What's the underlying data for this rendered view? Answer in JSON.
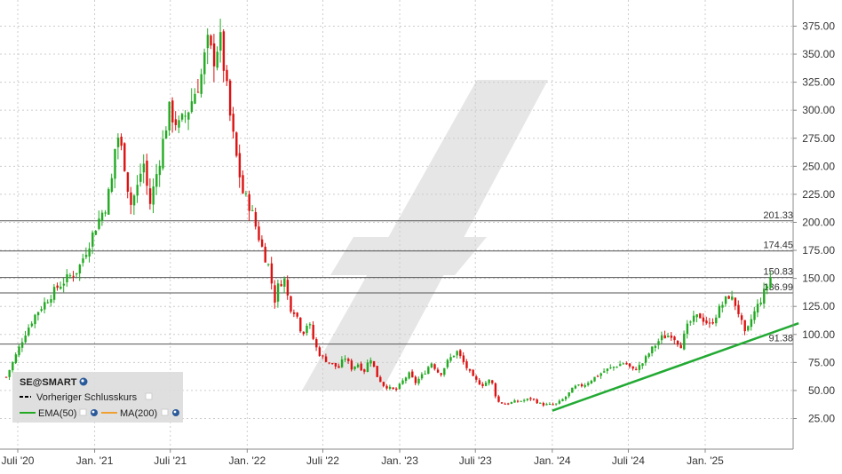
{
  "chart_data": {
    "type": "candlestick",
    "symbol": "SE@SMART",
    "colors": {
      "up": "#22aa22",
      "down": "#dd1111",
      "hline": "#555555",
      "trendline": "#22aa33",
      "ema": "#22aa22",
      "ma": "#f0a030"
    },
    "y_axis": {
      "position": "right",
      "ylim": [
        5,
        385
      ],
      "ticks": [
        "25.00",
        "50.00",
        "75.00",
        "100.00",
        "125.00",
        "150.00",
        "175.00",
        "200.00",
        "225.00",
        "250.00",
        "275.00",
        "300.00",
        "325.00",
        "350.00",
        "375.00"
      ]
    },
    "x_axis": {
      "ticks": [
        "Juli '20",
        "Jan. '21",
        "Juli '21",
        "Jan. '22",
        "Juli '22",
        "Jan. '23",
        "Juli '23",
        "Jan. '24",
        "Juli '24",
        "Jan. '25"
      ]
    },
    "horizontal_lines": [
      {
        "value": 201.33,
        "label": "201.33"
      },
      {
        "value": 174.45,
        "label": "174.45"
      },
      {
        "value": 150.83,
        "label": "150.83"
      },
      {
        "value": 136.99,
        "label": "136.99"
      },
      {
        "value": 91.38,
        "label": "91.38"
      }
    ],
    "trendline": {
      "from": {
        "x": "2024-01",
        "y": 32
      },
      "to": {
        "x": "2025-07",
        "y": 110
      }
    },
    "close_path": [
      [
        "2020-06-01",
        62
      ],
      [
        "2020-06-20",
        78
      ],
      [
        "2020-07-15",
        100
      ],
      [
        "2020-08-10",
        118
      ],
      [
        "2020-09-05",
        130
      ],
      [
        "2020-10-01",
        142
      ],
      [
        "2020-10-25",
        150
      ],
      [
        "2020-11-20",
        158
      ],
      [
        "2020-12-15",
        180
      ],
      [
        "2021-01-05",
        200
      ],
      [
        "2021-01-25",
        215
      ],
      [
        "2021-02-10",
        240
      ],
      [
        "2021-02-20",
        282
      ],
      [
        "2021-03-10",
        255
      ],
      [
        "2021-03-25",
        215
      ],
      [
        "2021-04-10",
        230
      ],
      [
        "2021-04-25",
        255
      ],
      [
        "2021-05-10",
        215
      ],
      [
        "2021-05-25",
        240
      ],
      [
        "2021-06-10",
        270
      ],
      [
        "2021-06-25",
        300
      ],
      [
        "2021-07-20",
        285
      ],
      [
        "2021-08-10",
        300
      ],
      [
        "2021-08-25",
        315
      ],
      [
        "2021-09-10",
        330
      ],
      [
        "2021-09-25",
        360
      ],
      [
        "2021-10-10",
        345
      ],
      [
        "2021-10-25",
        365
      ],
      [
        "2021-11-05",
        335
      ],
      [
        "2021-11-20",
        290
      ],
      [
        "2021-12-05",
        255
      ],
      [
        "2021-12-20",
        225
      ],
      [
        "2022-01-05",
        215
      ],
      [
        "2022-01-20",
        195
      ],
      [
        "2022-02-05",
        175
      ],
      [
        "2022-02-20",
        160
      ],
      [
        "2022-03-05",
        130
      ],
      [
        "2022-03-15",
        145
      ],
      [
        "2022-03-28",
        150
      ],
      [
        "2022-04-10",
        125
      ],
      [
        "2022-04-25",
        120
      ],
      [
        "2022-05-10",
        100
      ],
      [
        "2022-05-25",
        112
      ],
      [
        "2022-06-10",
        90
      ],
      [
        "2022-06-25",
        80
      ],
      [
        "2022-07-15",
        75
      ],
      [
        "2022-08-05",
        70
      ],
      [
        "2022-08-20",
        80
      ],
      [
        "2022-09-05",
        70
      ],
      [
        "2022-09-20",
        74
      ],
      [
        "2022-10-05",
        67
      ],
      [
        "2022-10-20",
        80
      ],
      [
        "2022-11-05",
        63
      ],
      [
        "2022-11-20",
        55
      ],
      [
        "2022-12-05",
        52
      ],
      [
        "2022-12-20",
        50
      ],
      [
        "2023-01-05",
        58
      ],
      [
        "2023-01-20",
        65
      ],
      [
        "2023-02-05",
        57
      ],
      [
        "2023-02-25",
        65
      ],
      [
        "2023-03-15",
        75
      ],
      [
        "2023-04-05",
        64
      ],
      [
        "2023-04-25",
        77
      ],
      [
        "2023-05-15",
        85
      ],
      [
        "2023-06-05",
        72
      ],
      [
        "2023-06-25",
        60
      ],
      [
        "2023-07-15",
        55
      ],
      [
        "2023-08-05",
        60
      ],
      [
        "2023-08-20",
        40
      ],
      [
        "2023-09-10",
        38
      ],
      [
        "2023-10-01",
        40
      ],
      [
        "2023-10-20",
        41
      ],
      [
        "2023-11-10",
        43
      ],
      [
        "2023-12-01",
        38
      ],
      [
        "2023-12-20",
        37
      ],
      [
        "2024-01-10",
        38
      ],
      [
        "2024-01-30",
        44
      ],
      [
        "2024-02-20",
        53
      ],
      [
        "2024-03-15",
        55
      ],
      [
        "2024-04-10",
        62
      ],
      [
        "2024-05-05",
        68
      ],
      [
        "2024-05-30",
        72
      ],
      [
        "2024-06-20",
        75
      ],
      [
        "2024-07-10",
        68
      ],
      [
        "2024-07-30",
        73
      ],
      [
        "2024-08-20",
        85
      ],
      [
        "2024-09-15",
        97
      ],
      [
        "2024-10-10",
        100
      ],
      [
        "2024-11-01",
        90
      ],
      [
        "2024-11-20",
        110
      ],
      [
        "2024-12-15",
        117
      ],
      [
        "2025-01-10",
        108
      ],
      [
        "2025-02-05",
        125
      ],
      [
        "2025-02-25",
        135
      ],
      [
        "2025-03-15",
        125
      ],
      [
        "2025-04-05",
        98
      ],
      [
        "2025-04-20",
        115
      ],
      [
        "2025-05-10",
        130
      ],
      [
        "2025-05-25",
        142
      ],
      [
        "2025-06-05",
        152
      ]
    ]
  },
  "legend": {
    "symbol": "SE@SMART",
    "prev_close_label": "Vorheriger Schlusskurs",
    "ema_label": "EMA(50)",
    "ma_label": "MA(200)"
  }
}
